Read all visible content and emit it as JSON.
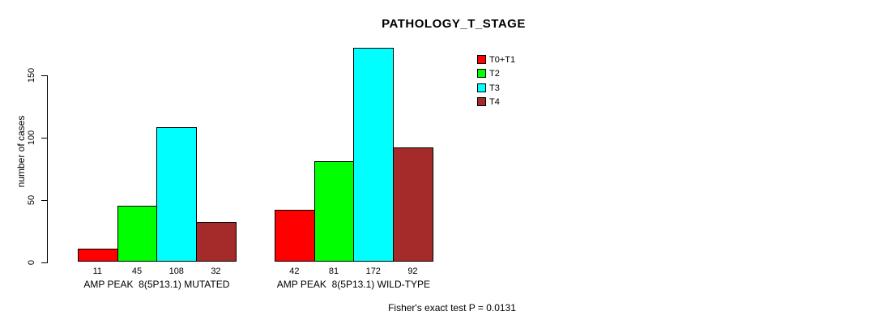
{
  "chart_data": {
    "type": "bar",
    "title": "PATHOLOGY_T_STAGE",
    "ylabel": "number of cases",
    "xlabel": "",
    "yticks": [
      0,
      50,
      100,
      150
    ],
    "ylim": [
      0,
      178
    ],
    "grid": false,
    "legend_position": "top-right",
    "categories": [
      "AMP PEAK  8(5P13.1) MUTATED",
      "AMP PEAK  8(5P13.1) WILD-TYPE"
    ],
    "series": [
      {
        "name": "T0+T1",
        "color": "#FF0000",
        "values": [
          11,
          42
        ]
      },
      {
        "name": "T2",
        "color": "#00FF00",
        "values": [
          45,
          81
        ]
      },
      {
        "name": "T3",
        "color": "#00FFFF",
        "values": [
          108,
          172
        ]
      },
      {
        "name": "T4",
        "color": "#A52A2A",
        "values": [
          32,
          92
        ]
      }
    ],
    "bar_value_labels": [
      [
        11,
        45,
        108,
        32
      ],
      [
        42,
        81,
        172,
        92
      ]
    ],
    "annotation": "Fisher's exact test P = 0.0131"
  }
}
